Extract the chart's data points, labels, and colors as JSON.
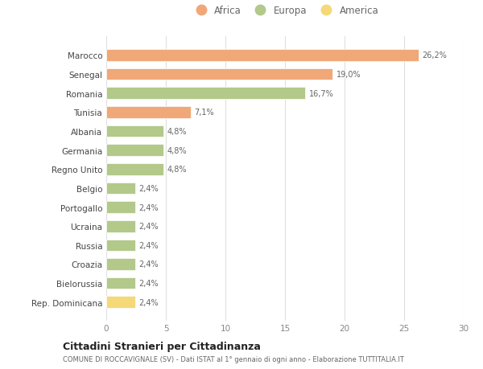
{
  "countries": [
    "Marocco",
    "Senegal",
    "Romania",
    "Tunisia",
    "Albania",
    "Germania",
    "Regno Unito",
    "Belgio",
    "Portogallo",
    "Ucraina",
    "Russia",
    "Croazia",
    "Bielorussia",
    "Rep. Dominicana"
  ],
  "values": [
    26.2,
    19.0,
    16.7,
    7.1,
    4.8,
    4.8,
    4.8,
    2.4,
    2.4,
    2.4,
    2.4,
    2.4,
    2.4,
    2.4
  ],
  "labels": [
    "26,2%",
    "19,0%",
    "16,7%",
    "7,1%",
    "4,8%",
    "4,8%",
    "4,8%",
    "2,4%",
    "2,4%",
    "2,4%",
    "2,4%",
    "2,4%",
    "2,4%",
    "2,4%"
  ],
  "continents": [
    "Africa",
    "Africa",
    "Europa",
    "Africa",
    "Europa",
    "Europa",
    "Europa",
    "Europa",
    "Europa",
    "Europa",
    "Europa",
    "Europa",
    "Europa",
    "America"
  ],
  "colors": {
    "Africa": "#F0A878",
    "Europa": "#B2C98A",
    "America": "#F5D878"
  },
  "legend_labels": [
    "Africa",
    "Europa",
    "America"
  ],
  "legend_colors": [
    "#F0A878",
    "#B2C98A",
    "#F5D878"
  ],
  "xlim": [
    0,
    30
  ],
  "xticks": [
    0,
    5,
    10,
    15,
    20,
    25,
    30
  ],
  "title": "Cittadini Stranieri per Cittadinanza",
  "subtitle": "COMUNE DI ROCCAVIGNALE (SV) - Dati ISTAT al 1° gennaio di ogni anno - Elaborazione TUTTITALIA.IT",
  "background_color": "#ffffff",
  "bar_edge_color": "white",
  "grid_color": "#e0e0e0"
}
